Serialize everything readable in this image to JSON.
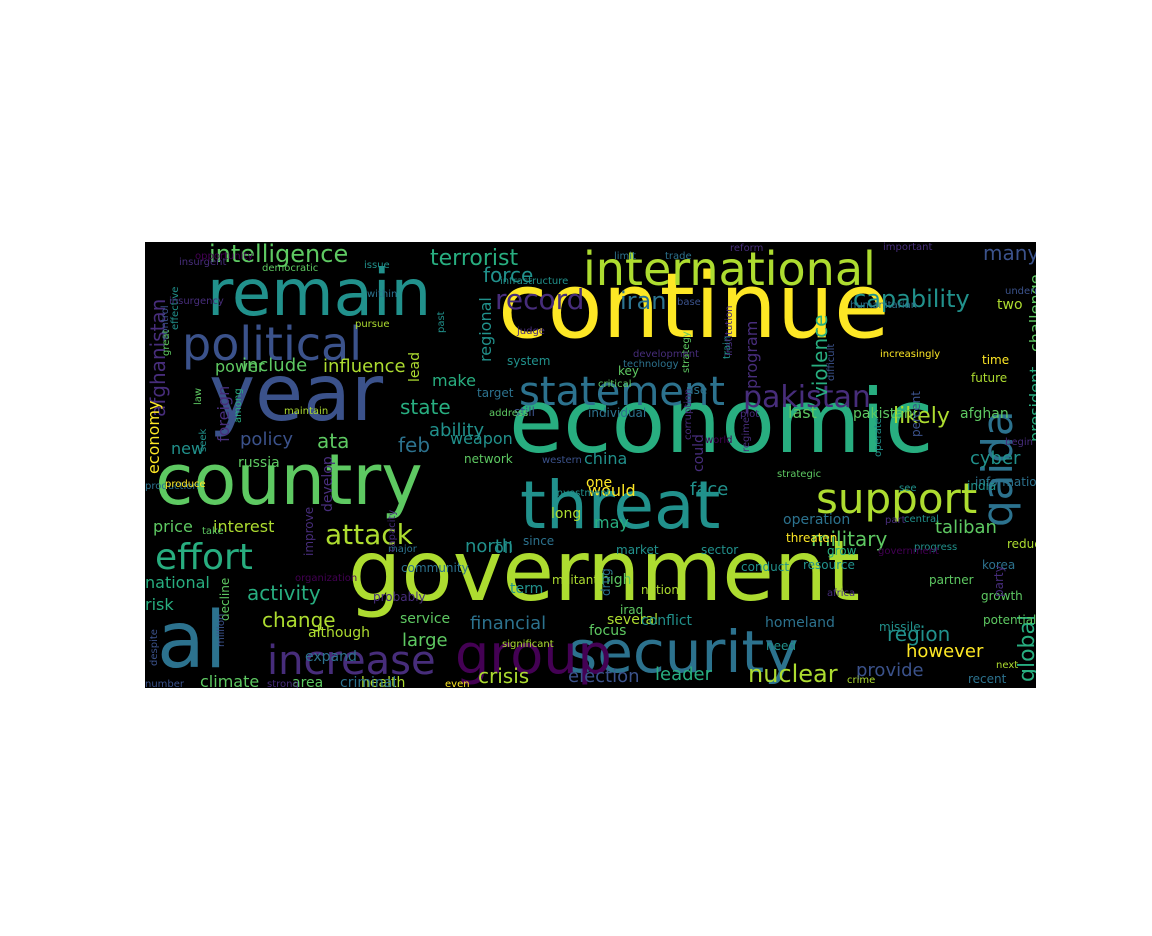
{
  "wordcloud": {
    "colors": {
      "background": "#000000",
      "purple": "#440154",
      "indigo": "#472d7b",
      "blue": "#3b528b",
      "steel": "#2c728e",
      "teal": "#21918c",
      "green": "#28ae80",
      "lime": "#5ec962",
      "yellowgreen": "#addc30",
      "yellow": "#fde725"
    },
    "words": [
      {
        "text": "continue",
        "color": "yellow"
      },
      {
        "text": "economic",
        "color": "green"
      },
      {
        "text": "government",
        "color": "yellowgreen"
      },
      {
        "text": "year",
        "color": "blue"
      },
      {
        "text": "country",
        "color": "lime"
      },
      {
        "text": "remain",
        "color": "teal"
      },
      {
        "text": "threat",
        "color": "teal"
      },
      {
        "text": "al",
        "color": "steel"
      },
      {
        "text": "security",
        "color": "steel"
      },
      {
        "text": "international",
        "color": "yellowgreen"
      },
      {
        "text": "political",
        "color": "blue"
      },
      {
        "text": "group",
        "color": "purple"
      },
      {
        "text": "support",
        "color": "yellowgreen"
      },
      {
        "text": "statement",
        "color": "steel"
      },
      {
        "text": "increase",
        "color": "indigo"
      },
      {
        "text": "qaida",
        "color": "steel"
      },
      {
        "text": "effort",
        "color": "green"
      },
      {
        "text": "pakistan",
        "color": "indigo"
      },
      {
        "text": "attack",
        "color": "yellowgreen"
      },
      {
        "text": "record",
        "color": "indigo"
      },
      {
        "text": "capability",
        "color": "teal"
      },
      {
        "text": "intelligence",
        "color": "lime"
      },
      {
        "text": "terrorist",
        "color": "green"
      },
      {
        "text": "nuclear",
        "color": "yellowgreen"
      },
      {
        "text": "crisis",
        "color": "yellowgreen"
      },
      {
        "text": "military",
        "color": "lime"
      },
      {
        "text": "likely",
        "color": "yellowgreen"
      },
      {
        "text": "iran",
        "color": "steel"
      },
      {
        "text": "force",
        "color": "teal"
      },
      {
        "text": "violence",
        "color": "green"
      },
      {
        "text": "global",
        "color": "green"
      },
      {
        "text": "region",
        "color": "teal"
      },
      {
        "text": "change",
        "color": "yellowgreen"
      },
      {
        "text": "activity",
        "color": "green"
      },
      {
        "text": "include",
        "color": "lime"
      },
      {
        "text": "influence",
        "color": "yellowgreen"
      },
      {
        "text": "policy",
        "color": "blue"
      },
      {
        "text": "ata",
        "color": "lime"
      },
      {
        "text": "feb",
        "color": "steel"
      },
      {
        "text": "state",
        "color": "green"
      },
      {
        "text": "ability",
        "color": "teal"
      },
      {
        "text": "north",
        "color": "teal"
      },
      {
        "text": "financial",
        "color": "steel"
      },
      {
        "text": "leader",
        "color": "green"
      },
      {
        "text": "election",
        "color": "blue"
      },
      {
        "text": "provide",
        "color": "blue"
      },
      {
        "text": "however",
        "color": "yellow"
      },
      {
        "text": "taliban",
        "color": "lime"
      },
      {
        "text": "cyber",
        "color": "teal"
      },
      {
        "text": "president",
        "color": "green"
      },
      {
        "text": "challenge",
        "color": "lime"
      },
      {
        "text": "afghanistan",
        "color": "indigo"
      },
      {
        "text": "price",
        "color": "lime"
      },
      {
        "text": "interest",
        "color": "yellowgreen"
      },
      {
        "text": "national",
        "color": "green"
      },
      {
        "text": "risk",
        "color": "green"
      },
      {
        "text": "climate",
        "color": "lime"
      },
      {
        "text": "new",
        "color": "teal"
      },
      {
        "text": "foreign",
        "color": "indigo"
      },
      {
        "text": "power",
        "color": "lime"
      },
      {
        "text": "make",
        "color": "green"
      },
      {
        "text": "weapon",
        "color": "teal"
      },
      {
        "text": "face",
        "color": "teal"
      },
      {
        "text": "would",
        "color": "yellow"
      },
      {
        "text": "many",
        "color": "blue"
      },
      {
        "text": "two",
        "color": "yellowgreen"
      },
      {
        "text": "program",
        "color": "indigo"
      },
      {
        "text": "regional",
        "color": "teal"
      },
      {
        "text": "economy",
        "color": "yellow"
      },
      {
        "text": "last",
        "color": "lime"
      },
      {
        "text": "pakistani",
        "color": "lime"
      },
      {
        "text": "afghan",
        "color": "lime"
      },
      {
        "text": "russia",
        "color": "lime"
      },
      {
        "text": "large",
        "color": "lime"
      },
      {
        "text": "term",
        "color": "teal"
      },
      {
        "text": "oil",
        "color": "teal"
      },
      {
        "text": "china",
        "color": "teal"
      },
      {
        "text": "could",
        "color": "indigo"
      },
      {
        "text": "may",
        "color": "green"
      },
      {
        "text": "focus",
        "color": "lime"
      },
      {
        "text": "several",
        "color": "yellowgreen"
      },
      {
        "text": "conflict",
        "color": "teal"
      },
      {
        "text": "homeland",
        "color": "steel"
      },
      {
        "text": "need",
        "color": "teal"
      },
      {
        "text": "missile",
        "color": "teal"
      },
      {
        "text": "growth",
        "color": "lime"
      },
      {
        "text": "area",
        "color": "lime"
      },
      {
        "text": "health",
        "color": "yellowgreen"
      },
      {
        "text": "criminal",
        "color": "steel"
      },
      {
        "text": "although",
        "color": "yellowgreen"
      },
      {
        "text": "expand",
        "color": "steel"
      },
      {
        "text": "service",
        "color": "lime"
      },
      {
        "text": "operation",
        "color": "steel"
      },
      {
        "text": "threaten",
        "color": "yellow"
      },
      {
        "text": "grow",
        "color": "green"
      },
      {
        "text": "resource",
        "color": "teal"
      },
      {
        "text": "conduct",
        "color": "teal"
      },
      {
        "text": "sector",
        "color": "teal"
      },
      {
        "text": "market",
        "color": "teal"
      },
      {
        "text": "militant",
        "color": "yellowgreen"
      },
      {
        "text": "nation",
        "color": "yellowgreen"
      },
      {
        "text": "one",
        "color": "yellow"
      },
      {
        "text": "high",
        "color": "lime"
      },
      {
        "text": "since",
        "color": "steel"
      },
      {
        "text": "long",
        "color": "yellowgreen"
      },
      {
        "text": "network",
        "color": "lime"
      },
      {
        "text": "lead",
        "color": "yellowgreen"
      },
      {
        "text": "develop",
        "color": "indigo"
      },
      {
        "text": "community",
        "color": "steel"
      },
      {
        "text": "improve",
        "color": "indigo"
      },
      {
        "text": "target",
        "color": "steel"
      },
      {
        "text": "system",
        "color": "teal"
      },
      {
        "text": "key",
        "color": "lime"
      },
      {
        "text": "use",
        "color": "steel"
      },
      {
        "text": "individual",
        "color": "steel"
      },
      {
        "text": "still",
        "color": "blue"
      },
      {
        "text": "percent",
        "color": "blue"
      },
      {
        "text": "future",
        "color": "yellowgreen"
      },
      {
        "text": "time",
        "color": "yellow"
      },
      {
        "text": "information",
        "color": "steel"
      },
      {
        "text": "india",
        "color": "teal"
      },
      {
        "text": "korea",
        "color": "steel"
      },
      {
        "text": "reduce",
        "color": "yellowgreen"
      },
      {
        "text": "party",
        "color": "indigo"
      },
      {
        "text": "potential",
        "color": "lime"
      },
      {
        "text": "next",
        "color": "yellowgreen"
      },
      {
        "text": "mass",
        "color": "yellowgreen"
      },
      {
        "text": "recent",
        "color": "steel"
      },
      {
        "text": "crime",
        "color": "yellowgreen"
      },
      {
        "text": "africa",
        "color": "indigo"
      },
      {
        "text": "partner",
        "color": "lime"
      },
      {
        "text": "iraq",
        "color": "lime"
      },
      {
        "text": "drug",
        "color": "steel"
      },
      {
        "text": "major",
        "color": "steel"
      },
      {
        "text": "capacity",
        "color": "indigo"
      },
      {
        "text": "probably",
        "color": "indigo"
      },
      {
        "text": "organization",
        "color": "purple"
      },
      {
        "text": "decline",
        "color": "lime"
      },
      {
        "text": "million",
        "color": "blue"
      },
      {
        "text": "despite",
        "color": "blue"
      },
      {
        "text": "number",
        "color": "blue"
      },
      {
        "text": "strong",
        "color": "indigo"
      },
      {
        "text": "even",
        "color": "yellow"
      },
      {
        "text": "significant",
        "color": "yellowgreen"
      },
      {
        "text": "production",
        "color": "steel"
      },
      {
        "text": "produce",
        "color": "yellow"
      },
      {
        "text": "maintain",
        "color": "yellowgreen"
      },
      {
        "text": "among",
        "color": "green"
      },
      {
        "text": "law",
        "color": "lime"
      },
      {
        "text": "great",
        "color": "lime"
      },
      {
        "text": "effective",
        "color": "teal"
      },
      {
        "text": "control",
        "color": "blue"
      },
      {
        "text": "insurgency",
        "color": "indigo"
      },
      {
        "text": "insurgent",
        "color": "indigo"
      },
      {
        "text": "opportunity",
        "color": "purple"
      },
      {
        "text": "democratic",
        "color": "lime"
      },
      {
        "text": "issue",
        "color": "teal"
      },
      {
        "text": "within",
        "color": "steel"
      },
      {
        "text": "pursue",
        "color": "yellowgreen"
      },
      {
        "text": "past",
        "color": "teal"
      },
      {
        "text": "infrastructure",
        "color": "teal"
      },
      {
        "text": "limit",
        "color": "steel"
      },
      {
        "text": "trade",
        "color": "steel"
      },
      {
        "text": "reform",
        "color": "indigo"
      },
      {
        "text": "important",
        "color": "indigo"
      },
      {
        "text": "base",
        "color": "blue"
      },
      {
        "text": "train",
        "color": "teal"
      },
      {
        "text": "humanitarian",
        "color": "steel"
      },
      {
        "text": "increasingly",
        "color": "yellow"
      },
      {
        "text": "difficult",
        "color": "blue"
      },
      {
        "text": "judge",
        "color": "indigo"
      },
      {
        "text": "technology",
        "color": "steel"
      },
      {
        "text": "strategy",
        "color": "lime"
      },
      {
        "text": "institution",
        "color": "indigo"
      },
      {
        "text": "development",
        "color": "indigo"
      },
      {
        "text": "address",
        "color": "lime"
      },
      {
        "text": "western",
        "color": "blue"
      },
      {
        "text": "critical",
        "color": "lime"
      },
      {
        "text": "plot",
        "color": "indigo"
      },
      {
        "text": "world",
        "color": "purple"
      },
      {
        "text": "corruption",
        "color": "indigo"
      },
      {
        "text": "strategic",
        "color": "lime"
      },
      {
        "text": "regime",
        "color": "indigo"
      },
      {
        "text": "operate",
        "color": "teal"
      },
      {
        "text": "see",
        "color": "teal"
      },
      {
        "text": "central",
        "color": "teal"
      },
      {
        "text": "part",
        "color": "indigo"
      },
      {
        "text": "progress",
        "color": "teal"
      },
      {
        "text": "government",
        "color": "purple"
      },
      {
        "text": "investment",
        "color": "teal"
      },
      {
        "text": "begin",
        "color": "indigo"
      },
      {
        "text": "take",
        "color": "lime"
      },
      {
        "text": "seek",
        "color": "teal"
      },
      {
        "text": "undermine",
        "color": "blue"
      },
      {
        "text": "non",
        "color": "purple"
      },
      {
        "text": "help",
        "color": "purple"
      },
      {
        "text": "ally",
        "color": "indigo"
      },
      {
        "text": "lack",
        "color": "purple"
      },
      {
        "text": "ongoing",
        "color": "purple"
      }
    ]
  }
}
